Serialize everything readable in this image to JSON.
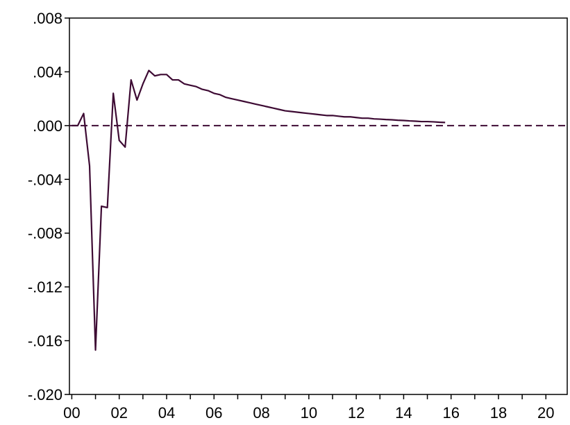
{
  "chart_data": {
    "type": "line",
    "title": "",
    "xlabel": "",
    "ylabel": "",
    "xlim": [
      1999.9,
      2020.9
    ],
    "ylim": [
      -0.02,
      0.008
    ],
    "x_ticks": [
      {
        "value": 2000,
        "label": "00"
      },
      {
        "value": 2002,
        "label": "02"
      },
      {
        "value": 2004,
        "label": "04"
      },
      {
        "value": 2006,
        "label": "06"
      },
      {
        "value": 2008,
        "label": "08"
      },
      {
        "value": 2010,
        "label": "10"
      },
      {
        "value": 2012,
        "label": "12"
      },
      {
        "value": 2014,
        "label": "14"
      },
      {
        "value": 2016,
        "label": "16"
      },
      {
        "value": 2018,
        "label": "18"
      },
      {
        "value": 2020,
        "label": "20"
      }
    ],
    "y_ticks": [
      {
        "value": 0.008,
        "label": ".008"
      },
      {
        "value": 0.004,
        "label": ".004"
      },
      {
        "value": 0.0,
        "label": ".000"
      },
      {
        "value": -0.004,
        "label": "-.004"
      },
      {
        "value": -0.008,
        "label": "-.008"
      },
      {
        "value": -0.012,
        "label": "-.012"
      },
      {
        "value": -0.016,
        "label": "-.016"
      },
      {
        "value": -0.02,
        "label": "-.020"
      }
    ],
    "reference_line": {
      "y": 0.0,
      "style": "dashed"
    },
    "grid": false,
    "colors": {
      "series": "#3d0a33",
      "axis": "#000000",
      "reference": "#3d0a33"
    },
    "series": [
      {
        "x": [
          2000.0,
          2000.25,
          2000.5,
          2000.75,
          2001.0,
          2001.25,
          2001.5,
          2001.75,
          2002.0,
          2002.25,
          2002.5,
          2002.75,
          2003.0,
          2003.25,
          2003.5,
          2003.75,
          2004.0,
          2004.25,
          2004.5,
          2004.75,
          2005.0,
          2005.25,
          2005.5,
          2005.75,
          2006.0,
          2006.25,
          2006.5,
          2006.75,
          2007.0,
          2007.25,
          2007.5,
          2007.75,
          2008.0,
          2008.25,
          2008.5,
          2008.75,
          2009.0,
          2009.25,
          2009.5,
          2009.75,
          2010.0,
          2010.25,
          2010.5,
          2010.75,
          2011.0,
          2011.25,
          2011.5,
          2011.75,
          2012.0,
          2012.25,
          2012.5,
          2012.75,
          2013.0,
          2013.25,
          2013.5,
          2013.75,
          2014.0,
          2014.25,
          2014.5,
          2014.75,
          2015.0,
          2015.25,
          2015.5,
          2015.75
        ],
        "values": [
          0.0,
          0.0,
          0.0009,
          -0.003,
          -0.0167,
          -0.006,
          -0.0061,
          0.0024,
          -0.0011,
          -0.0016,
          0.0034,
          0.0019,
          0.0031,
          0.0041,
          0.0037,
          0.0038,
          0.0038,
          0.0034,
          0.0034,
          0.0031,
          0.003,
          0.0029,
          0.0027,
          0.0026,
          0.0024,
          0.0023,
          0.0021,
          0.002,
          0.0019,
          0.0018,
          0.0017,
          0.0016,
          0.0015,
          0.0014,
          0.0013,
          0.0012,
          0.0011,
          0.00105,
          0.001,
          0.00095,
          0.0009,
          0.00085,
          0.0008,
          0.00075,
          0.00075,
          0.0007,
          0.00065,
          0.00065,
          0.0006,
          0.00055,
          0.00055,
          0.0005,
          0.00048,
          0.00045,
          0.00043,
          0.0004,
          0.00038,
          0.00035,
          0.00033,
          0.0003,
          0.0003,
          0.00028,
          0.00025,
          0.00023
        ]
      }
    ]
  }
}
